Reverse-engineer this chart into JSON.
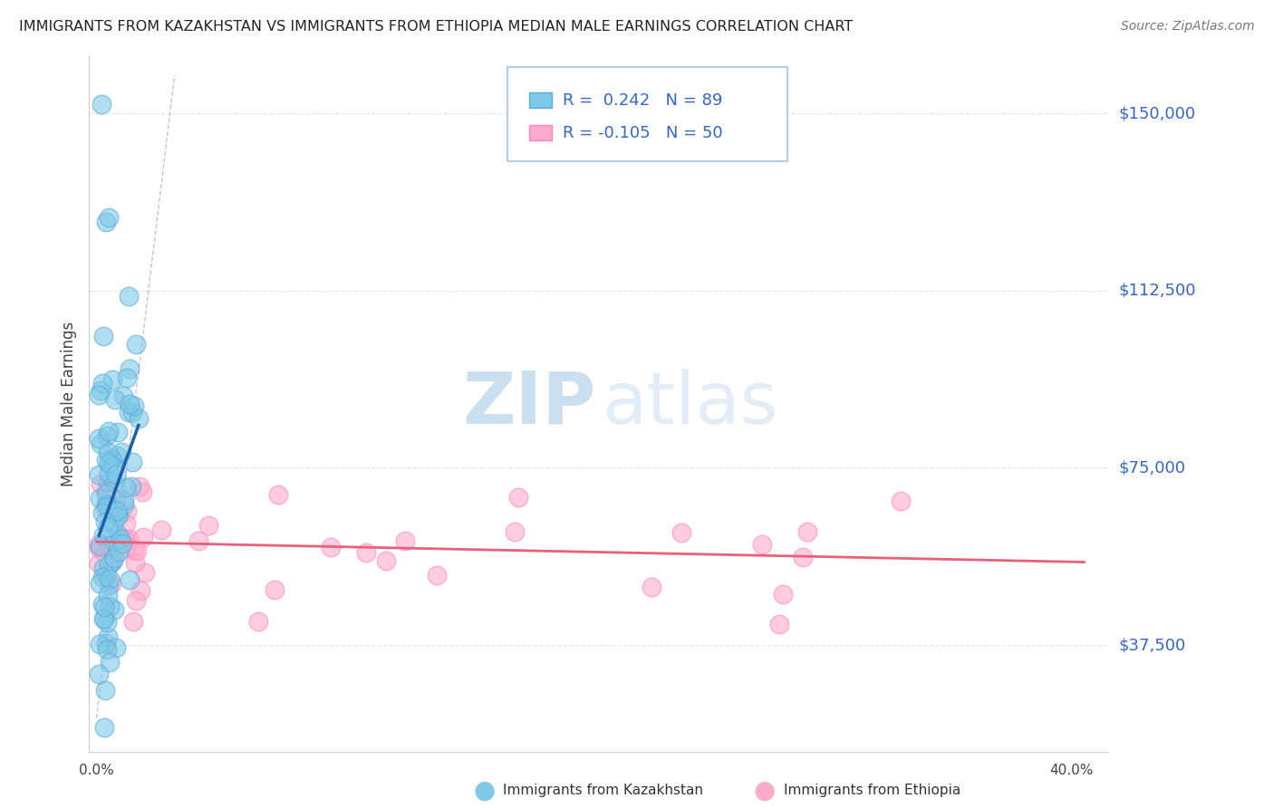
{
  "title": "IMMIGRANTS FROM KAZAKHSTAN VS IMMIGRANTS FROM ETHIOPIA MEDIAN MALE EARNINGS CORRELATION CHART",
  "source": "Source: ZipAtlas.com",
  "ylabel": "Median Male Earnings",
  "yticks": [
    37500,
    75000,
    112500,
    150000
  ],
  "ytick_labels": [
    "$37,500",
    "$75,000",
    "$112,500",
    "$150,000"
  ],
  "ymin": 15000,
  "ymax": 162000,
  "xmin": -0.003,
  "xmax": 0.415,
  "color_kaz": "#7ec8e8",
  "color_eth": "#ffaacc",
  "color_kaz_edge": "#5aabdc",
  "color_eth_edge": "#ff88bb",
  "color_trend_kaz": "#1a5fa8",
  "color_trend_eth": "#e8607a",
  "color_refline": "#b0b8c8",
  "watermark_zip_color": "#a8cce8",
  "watermark_atlas_color": "#c8ddf0",
  "legend_text_color": "#3366cc",
  "legend_border_color": "#b8cce4",
  "title_color": "#222222",
  "source_color": "#777777",
  "grid_color": "#dce8f5",
  "xlabel_color": "#444444",
  "ylabel_color": "#444444"
}
